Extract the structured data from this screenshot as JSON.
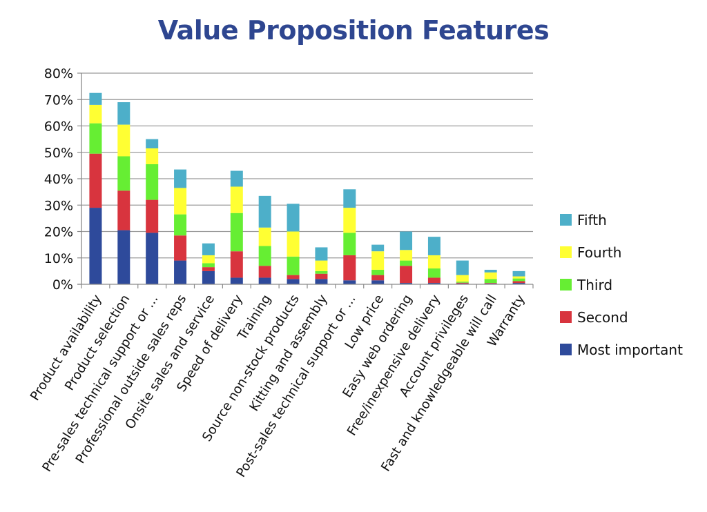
{
  "chart_data": {
    "type": "bar",
    "stacked": true,
    "title": "Value Proposition Features",
    "ylim": [
      0,
      80
    ],
    "y_ticks": [
      "0%",
      "10%",
      "20%",
      "30%",
      "40%",
      "50%",
      "60%",
      "70%",
      "80%"
    ],
    "grid": true,
    "legend_position": "right",
    "categories": [
      "Product availability",
      "Product selection",
      "Pre-sales technical support or ...",
      "Professional outside sales reps",
      "Onsite sales and service",
      "Speed of delivery",
      "Training",
      "Source non-stock products",
      "Kitting and assembly",
      "Post-sales technical support or ...",
      "Low price",
      "Easy web ordering",
      "Free/inexpensive delivery",
      "Account privileges",
      "Fast and knowledgeable will call",
      "Warranty"
    ],
    "series": [
      {
        "name": "Most important",
        "color": "#2E4A9B",
        "values": [
          29,
          20.5,
          19.5,
          9,
          5,
          2.5,
          2.5,
          2,
          2,
          1.5,
          1.5,
          0.5,
          0.5,
          0.3,
          0.3,
          0.5
        ]
      },
      {
        "name": "Second",
        "color": "#D8343E",
        "values": [
          20.5,
          15,
          12.5,
          9.5,
          1.5,
          10,
          4.5,
          1.5,
          2,
          9.5,
          2,
          6.5,
          2,
          0.3,
          0.2,
          0.7
        ]
      },
      {
        "name": "Third",
        "color": "#66EE33",
        "values": [
          11.5,
          13,
          13.5,
          8,
          1.5,
          14.5,
          7.5,
          7,
          1,
          8.5,
          2,
          2,
          3.5,
          0.4,
          1.5,
          1
        ]
      },
      {
        "name": "Fourth",
        "color": "#FFFF33",
        "values": [
          7,
          12,
          6,
          10,
          3,
          10,
          7,
          9.5,
          4,
          9.5,
          7,
          4,
          5,
          2.5,
          2.5,
          0.8
        ]
      },
      {
        "name": "Fifth",
        "color": "#4DAFC9",
        "values": [
          4.5,
          8.5,
          3.5,
          7,
          4.5,
          6,
          12,
          10.5,
          5,
          7,
          2.5,
          7,
          7,
          5.5,
          1,
          2
        ]
      }
    ]
  }
}
